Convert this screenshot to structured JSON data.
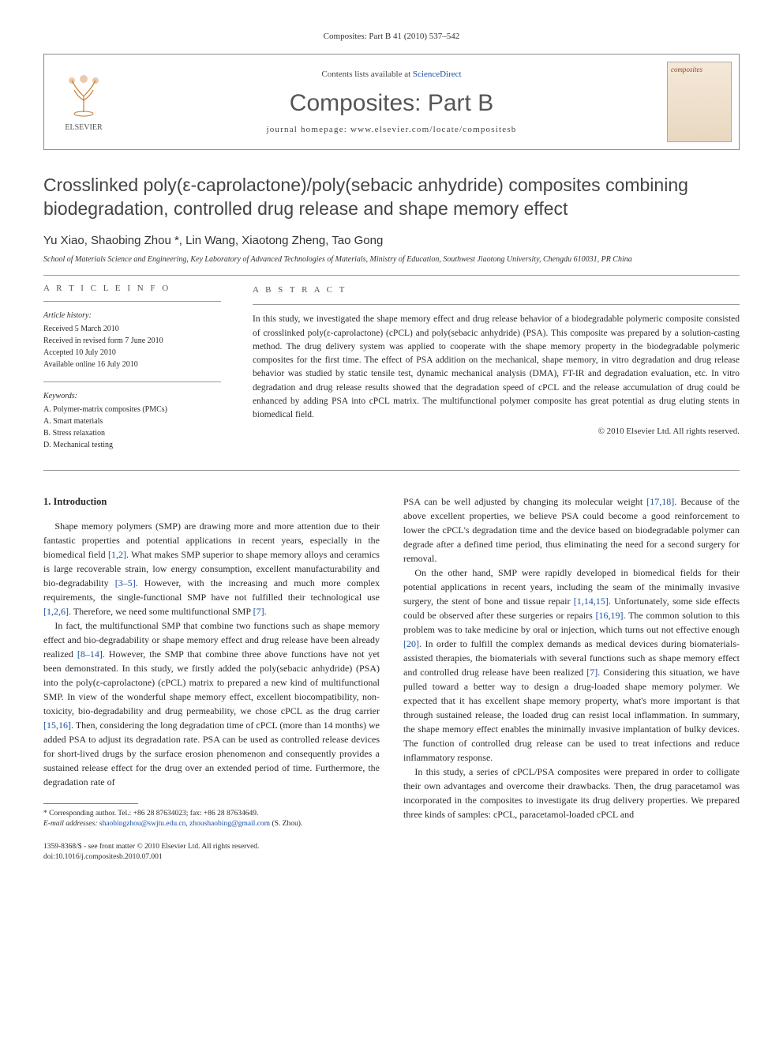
{
  "header_citation": "Composites: Part B 41 (2010) 537–542",
  "banner": {
    "publisher": "ELSEVIER",
    "contents_prefix": "Contents lists available at ",
    "contents_link": "ScienceDirect",
    "journal": "Composites: Part B",
    "homepage_label": "journal homepage: www.elsevier.com/locate/compositesb",
    "cover_label": "composites"
  },
  "title": "Crosslinked poly(ε-caprolactone)/poly(sebacic anhydride) composites combining biodegradation, controlled drug release and shape memory effect",
  "authors": "Yu Xiao, Shaobing Zhou *, Lin Wang, Xiaotong Zheng, Tao Gong",
  "affiliation": "School of Materials Science and Engineering, Key Laboratory of Advanced Technologies of Materials, Ministry of Education, Southwest Jiaotong University, Chengdu 610031, PR China",
  "article_info": {
    "heading": "A R T I C L E   I N F O",
    "history_label": "Article history:",
    "history": [
      "Received 5 March 2010",
      "Received in revised form 7 June 2010",
      "Accepted 10 July 2010",
      "Available online 16 July 2010"
    ],
    "keywords_label": "Keywords:",
    "keywords": [
      "A. Polymer-matrix composites (PMCs)",
      "A. Smart materials",
      "B. Stress relaxation",
      "D. Mechanical testing"
    ]
  },
  "abstract": {
    "heading": "A B S T R A C T",
    "text": "In this study, we investigated the shape memory effect and drug release behavior of a biodegradable polymeric composite consisted of crosslinked poly(ε-caprolactone) (cPCL) and poly(sebacic anhydride) (PSA). This composite was prepared by a solution-casting method. The drug delivery system was applied to cooperate with the shape memory property in the biodegradable polymeric composites for the first time. The effect of PSA addition on the mechanical, shape memory, in vitro degradation and drug release behavior was studied by static tensile test, dynamic mechanical analysis (DMA), FT-IR and degradation evaluation, etc. In vitro degradation and drug release results showed that the degradation speed of cPCL and the release accumulation of drug could be enhanced by adding PSA into cPCL matrix. The multifunctional polymer composite has great potential as drug eluting stents in biomedical field.",
    "copyright": "© 2010 Elsevier Ltd. All rights reserved."
  },
  "section1": {
    "heading": "1. Introduction",
    "p1": "Shape memory polymers (SMP) are drawing more and more attention due to their fantastic properties and potential applications in recent years, especially in the biomedical field [1,2]. What makes SMP superior to shape memory alloys and ceramics is large recoverable strain, low energy consumption, excellent manufacturability and bio-degradability [3–5]. However, with the increasing and much more complex requirements, the single-functional SMP have not fulfilled their technological use [1,2,6]. Therefore, we need some multifunctional SMP [7].",
    "p2": "In fact, the multifunctional SMP that combine two functions such as shape memory effect and bio-degradability or shape memory effect and drug release have been already realized [8–14]. However, the SMP that combine three above functions have not yet been demonstrated. In this study, we firstly added the poly(sebacic anhydride) (PSA) into the poly(ε-caprolactone) (cPCL) matrix to prepared a new kind of multifunctional SMP. In view of the wonderful shape memory effect, excellent biocompatibility, non-toxicity, bio-degradability and drug permeability, we chose cPCL as the drug carrier [15,16]. Then, considering the long degradation time of cPCL (more than 14 months) we added PSA to adjust its degradation rate. PSA can be used as controlled release devices for short-lived drugs by the surface erosion phenomenon and consequently provides a sustained release effect for the drug over an extended period of time. Furthermore, the degradation rate of",
    "p3": "PSA can be well adjusted by changing its molecular weight [17,18]. Because of the above excellent properties, we believe PSA could become a good reinforcement to lower the cPCL's degradation time and the device based on biodegradable polymer can degrade after a defined time period, thus eliminating the need for a second surgery for removal.",
    "p4": "On the other hand, SMP were rapidly developed in biomedical fields for their potential applications in recent years, including the seam of the minimally invasive surgery, the stent of bone and tissue repair [1,14,15]. Unfortunately, some side effects could be observed after these surgeries or repairs [16,19]. The common solution to this problem was to take medicine by oral or injection, which turns out not effective enough [20]. In order to fulfill the complex demands as medical devices during biomaterials-assisted therapies, the biomaterials with several functions such as shape memory effect and controlled drug release have been realized [7]. Considering this situation, we have pulled toward a better way to design a drug-loaded shape memory polymer. We expected that it has excellent shape memory property, what's more important is that through sustained release, the loaded drug can resist local inflammation. In summary, the shape memory effect enables the minimally invasive implantation of bulky devices. The function of controlled drug release can be used to treat infections and reduce inflammatory response.",
    "p5": "In this study, a series of cPCL/PSA composites were prepared in order to colligate their own advantages and overcome their drawbacks. Then, the drug paracetamol was incorporated in the composites to investigate its drug delivery properties. We prepared three kinds of samples: cPCL, paracetamol-loaded cPCL and"
  },
  "footnote": {
    "corr_label": "* Corresponding author. Tel.: +86 28 87634023; fax: +86 28 87634649.",
    "email_label": "E-mail addresses:",
    "emails": "shaobingzhou@swjtu.edu.cn, zhoushaobing@gmail.com",
    "email_suffix": "(S. Zhou)."
  },
  "bottom": {
    "issn": "1359-8368/$ - see front matter © 2010 Elsevier Ltd. All rights reserved.",
    "doi": "doi:10.1016/j.compositesb.2010.07.001"
  },
  "colors": {
    "link": "#1a4fa3",
    "heading_gray": "#555555",
    "text": "#2a2a2a",
    "rule": "#999999"
  }
}
